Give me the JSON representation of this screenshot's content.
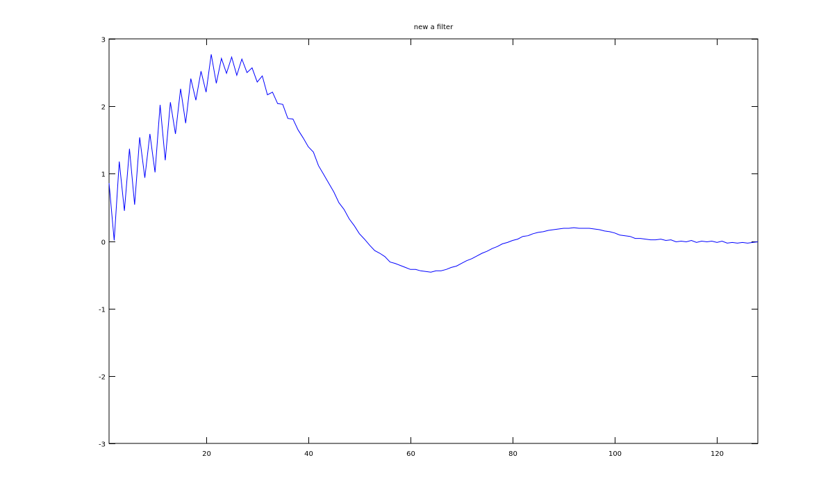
{
  "chart_data": {
    "type": "line",
    "title": "new a filter",
    "xlabel": "",
    "ylabel": "",
    "xlim": [
      1,
      128
    ],
    "ylim": [
      -3,
      3
    ],
    "xticks": [
      20,
      40,
      60,
      80,
      100,
      120
    ],
    "yticks": [
      -3,
      -2,
      -1,
      0,
      1,
      2,
      3
    ],
    "grid": false,
    "box": true,
    "line_color": "#0000ff",
    "x_start": 1,
    "series": [
      {
        "values": [
          0.86,
          0.01,
          1.18,
          0.45,
          1.37,
          0.54,
          1.54,
          0.94,
          1.59,
          1.02,
          2.02,
          1.2,
          2.06,
          1.59,
          2.26,
          1.75,
          2.41,
          2.09,
          2.52,
          2.21,
          2.77,
          2.34,
          2.71,
          2.49,
          2.73,
          2.46,
          2.7,
          2.5,
          2.57,
          2.36,
          2.45,
          2.17,
          2.21,
          2.04,
          2.03,
          1.82,
          1.81,
          1.65,
          1.53,
          1.4,
          1.32,
          1.12,
          0.99,
          0.86,
          0.73,
          0.57,
          0.47,
          0.33,
          0.23,
          0.11,
          0.03,
          -0.06,
          -0.14,
          -0.18,
          -0.23,
          -0.31,
          -0.33,
          -0.36,
          -0.39,
          -0.42,
          -0.42,
          -0.44,
          -0.45,
          -0.46,
          -0.44,
          -0.44,
          -0.42,
          -0.39,
          -0.37,
          -0.33,
          -0.29,
          -0.26,
          -0.22,
          -0.18,
          -0.15,
          -0.11,
          -0.08,
          -0.04,
          -0.02,
          0.01,
          0.03,
          0.07,
          0.08,
          0.11,
          0.13,
          0.14,
          0.16,
          0.17,
          0.18,
          0.19,
          0.19,
          0.2,
          0.19,
          0.19,
          0.19,
          0.18,
          0.17,
          0.15,
          0.14,
          0.12,
          0.09,
          0.08,
          0.07,
          0.04,
          0.04,
          0.03,
          0.02,
          0.02,
          0.03,
          0.01,
          0.02,
          -0.01,
          0.0,
          -0.01,
          0.01,
          -0.02,
          0.0,
          -0.01,
          0.0,
          -0.02,
          0.0,
          -0.03,
          -0.02,
          -0.03,
          -0.02,
          -0.03,
          -0.02,
          -0.01
        ]
      }
    ]
  }
}
